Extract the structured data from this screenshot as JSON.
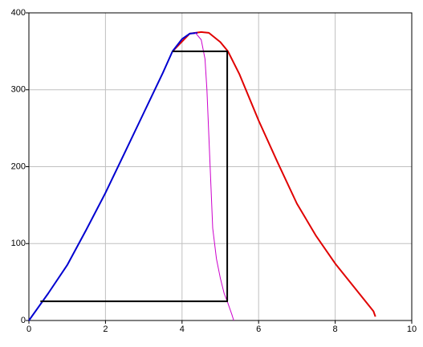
{
  "chart_data": {
    "type": "line",
    "xlim": [
      0,
      10
    ],
    "xticks": [
      0,
      2,
      4,
      6,
      8,
      10
    ],
    "ylim": [
      0,
      400
    ],
    "yticks": [
      0,
      100,
      200,
      300,
      400
    ],
    "grid": true,
    "series": [
      {
        "color": "#e00000",
        "width": 2,
        "x": [
          3.75,
          4.2,
          4.5,
          4.7,
          5.0,
          5.2,
          5.5,
          6.0,
          6.5,
          7.0,
          7.5,
          8.0,
          8.5,
          9.0,
          9.05
        ],
        "values": [
          350,
          373,
          375,
          374,
          362,
          350,
          320,
          260,
          205,
          152,
          110,
          74,
          43,
          12,
          5
        ]
      },
      {
        "color": "#0000d0",
        "width": 2,
        "x": [
          0,
          0.5,
          1.0,
          1.5,
          2.0,
          2.5,
          3.0,
          3.5,
          3.75,
          4.0,
          4.2,
          4.4
        ],
        "values": [
          0,
          35,
          72,
          118,
          166,
          218,
          270,
          322,
          350,
          366,
          373,
          374
        ]
      },
      {
        "color": "#cc00cc",
        "width": 1,
        "x": [
          4.35,
          4.5,
          4.6,
          4.65,
          4.7,
          4.75,
          4.8,
          4.9,
          5.0,
          5.1,
          5.18,
          5.3,
          5.35
        ],
        "values": [
          374,
          365,
          340,
          300,
          240,
          180,
          120,
          80,
          55,
          35,
          25,
          8,
          0
        ]
      },
      {
        "color": "#000000",
        "width": 2,
        "x": [
          0.3,
          5.18,
          5.18,
          3.75
        ],
        "values": [
          25,
          25,
          350,
          350
        ]
      }
    ]
  }
}
